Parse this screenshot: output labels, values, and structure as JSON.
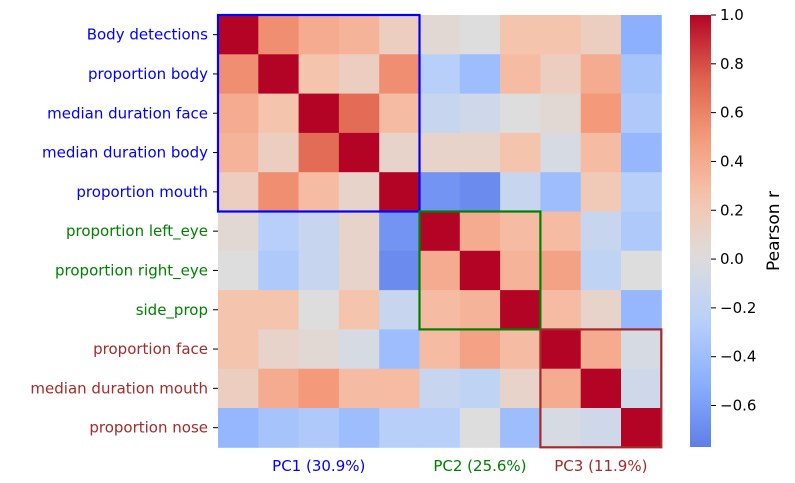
{
  "chart_data": {
    "type": "heatmap",
    "rows": [
      {
        "label": "Body detections",
        "color": "#0000ff"
      },
      {
        "label": "proportion body",
        "color": "#0000ff"
      },
      {
        "label": "median duration face",
        "color": "#0000ff"
      },
      {
        "label": "median duration body",
        "color": "#0000ff"
      },
      {
        "label": "proportion mouth",
        "color": "#0000ff"
      },
      {
        "label": "proportion left_eye",
        "color": "#008000"
      },
      {
        "label": "proportion right_eye",
        "color": "#008000"
      },
      {
        "label": "side_prop",
        "color": "#008000"
      },
      {
        "label": "proportion face",
        "color": "#a52a2a"
      },
      {
        "label": "median duration mouth",
        "color": "#a52a2a"
      },
      {
        "label": "proportion nose",
        "color": "#a52a2a"
      }
    ],
    "matrix": [
      [
        1.0,
        0.55,
        0.4,
        0.35,
        0.15,
        0.05,
        0.0,
        0.25,
        0.25,
        0.15,
        -0.5
      ],
      [
        0.55,
        1.0,
        0.25,
        0.15,
        0.55,
        -0.25,
        -0.4,
        0.3,
        0.15,
        0.4,
        -0.35
      ],
      [
        0.4,
        0.25,
        1.0,
        0.7,
        0.3,
        -0.15,
        -0.1,
        0.0,
        0.05,
        0.5,
        -0.3
      ],
      [
        0.35,
        0.15,
        0.7,
        1.0,
        0.1,
        0.1,
        0.1,
        0.25,
        -0.05,
        0.3,
        -0.45
      ],
      [
        0.15,
        0.55,
        0.3,
        0.1,
        1.0,
        -0.65,
        -0.7,
        -0.15,
        -0.4,
        0.2,
        -0.25
      ],
      [
        0.05,
        -0.25,
        -0.15,
        0.1,
        -0.65,
        1.0,
        0.4,
        0.3,
        0.3,
        -0.15,
        -0.3
      ],
      [
        0.0,
        -0.3,
        -0.15,
        0.1,
        -0.7,
        0.4,
        1.0,
        0.35,
        0.45,
        -0.2,
        0.0
      ],
      [
        0.25,
        0.25,
        0.0,
        0.25,
        -0.15,
        0.3,
        0.35,
        1.0,
        0.3,
        0.1,
        -0.45
      ],
      [
        0.25,
        0.1,
        0.05,
        -0.05,
        -0.4,
        0.3,
        0.45,
        0.3,
        1.0,
        0.4,
        -0.05
      ],
      [
        0.15,
        0.4,
        0.5,
        0.3,
        0.3,
        -0.15,
        -0.2,
        0.1,
        0.4,
        1.0,
        -0.1
      ],
      [
        -0.45,
        -0.35,
        -0.3,
        -0.4,
        -0.25,
        -0.25,
        0.0,
        -0.4,
        -0.05,
        -0.1,
        1.0
      ]
    ],
    "groups": [
      {
        "label": "PC1 (30.9%)",
        "start": 0,
        "end": 4,
        "color": "#0000ff"
      },
      {
        "label": "PC2 (25.6%)",
        "start": 5,
        "end": 7,
        "color": "#008000"
      },
      {
        "label": "PC3 (11.9%)",
        "start": 8,
        "end": 10,
        "color": "#a52a2a"
      }
    ],
    "colorbar": {
      "label": "Pearson r",
      "vmin": -0.77,
      "vmax": 1.0,
      "ticks": [
        "1.0",
        "0.8",
        "0.6",
        "0.4",
        "0.2",
        "0.0",
        "−0.2",
        "−0.4",
        "−0.6"
      ],
      "tick_values": [
        1.0,
        0.8,
        0.6,
        0.4,
        0.2,
        0.0,
        -0.2,
        -0.4,
        -0.6
      ],
      "colormap": "coolwarm"
    }
  }
}
